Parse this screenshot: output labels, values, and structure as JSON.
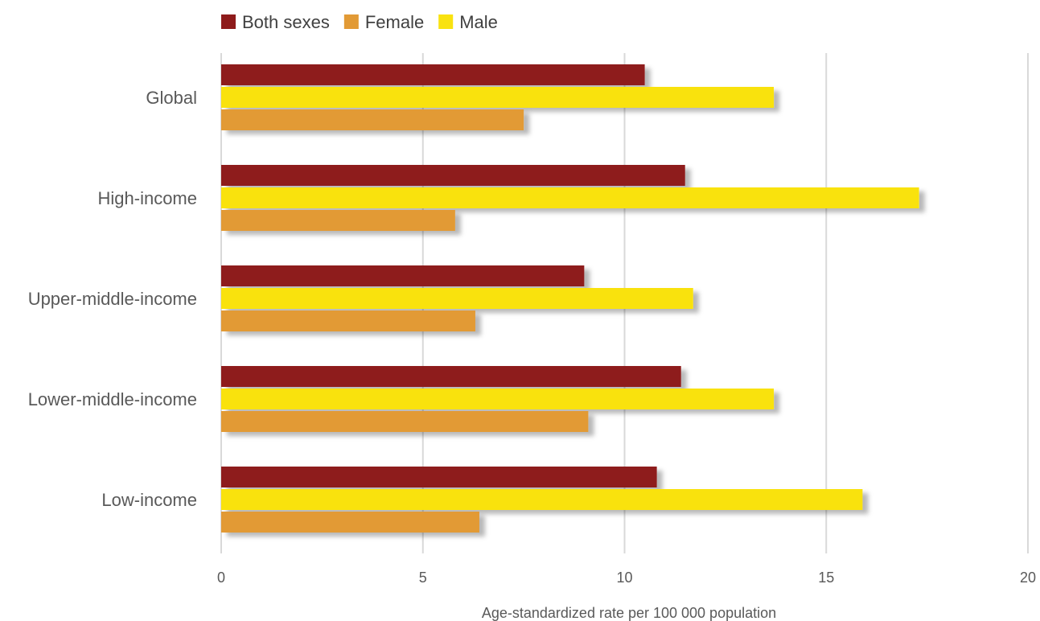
{
  "chart_data": {
    "type": "bar",
    "orientation": "horizontal",
    "categories": [
      "Global",
      "High-income",
      "Upper-middle-income",
      "Lower-middle-income",
      "Low-income"
    ],
    "series": [
      {
        "name": "Both sexes",
        "color": "#8e1b1b",
        "values": [
          10.5,
          11.5,
          9.0,
          11.4,
          10.8
        ]
      },
      {
        "name": "Male",
        "color": "#f9e210",
        "values": [
          13.7,
          17.3,
          11.7,
          13.7,
          15.9
        ]
      },
      {
        "name": "Female",
        "color": "#e29a35",
        "values": [
          7.5,
          5.8,
          6.3,
          9.1,
          6.4
        ]
      }
    ],
    "legend_order": [
      "Both sexes",
      "Female",
      "Male"
    ],
    "legend_position": "top-left",
    "xlim": [
      0,
      20
    ],
    "xticks": [
      0,
      5,
      10,
      15,
      20
    ],
    "xtick_labels": [
      "0",
      "5",
      "10",
      "15",
      "20"
    ],
    "xlabel": "Age-standardized rate per 100 000 population",
    "ylabel": "",
    "title": "",
    "grid": "vertical"
  }
}
